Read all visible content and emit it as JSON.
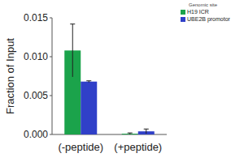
{
  "chart_data": {
    "type": "bar",
    "y_label": "Fraction of Input",
    "legend_title": "Genomic site",
    "legend": "top-right",
    "categories": [
      "(-peptide)",
      "(+peptide)"
    ],
    "series": [
      {
        "name": "H19 ICR",
        "color": "#1ba34b",
        "values": [
          0.0108,
          0.0001
        ],
        "errors": [
          0.0034,
          0.0001
        ]
      },
      {
        "name": "UBE2B promotor",
        "color": "#3040c8",
        "values": [
          0.0068,
          0.0004
        ],
        "errors": [
          0.0001,
          0.0003
        ]
      }
    ],
    "ylim": [
      0,
      0.015
    ],
    "yticks": [
      {
        "value": 0,
        "label": "0.000"
      },
      {
        "value": 0.005,
        "label": "0.005"
      },
      {
        "value": 0.01,
        "label": "0.010"
      },
      {
        "value": 0.015,
        "label": "0.015"
      }
    ],
    "grid": false
  }
}
